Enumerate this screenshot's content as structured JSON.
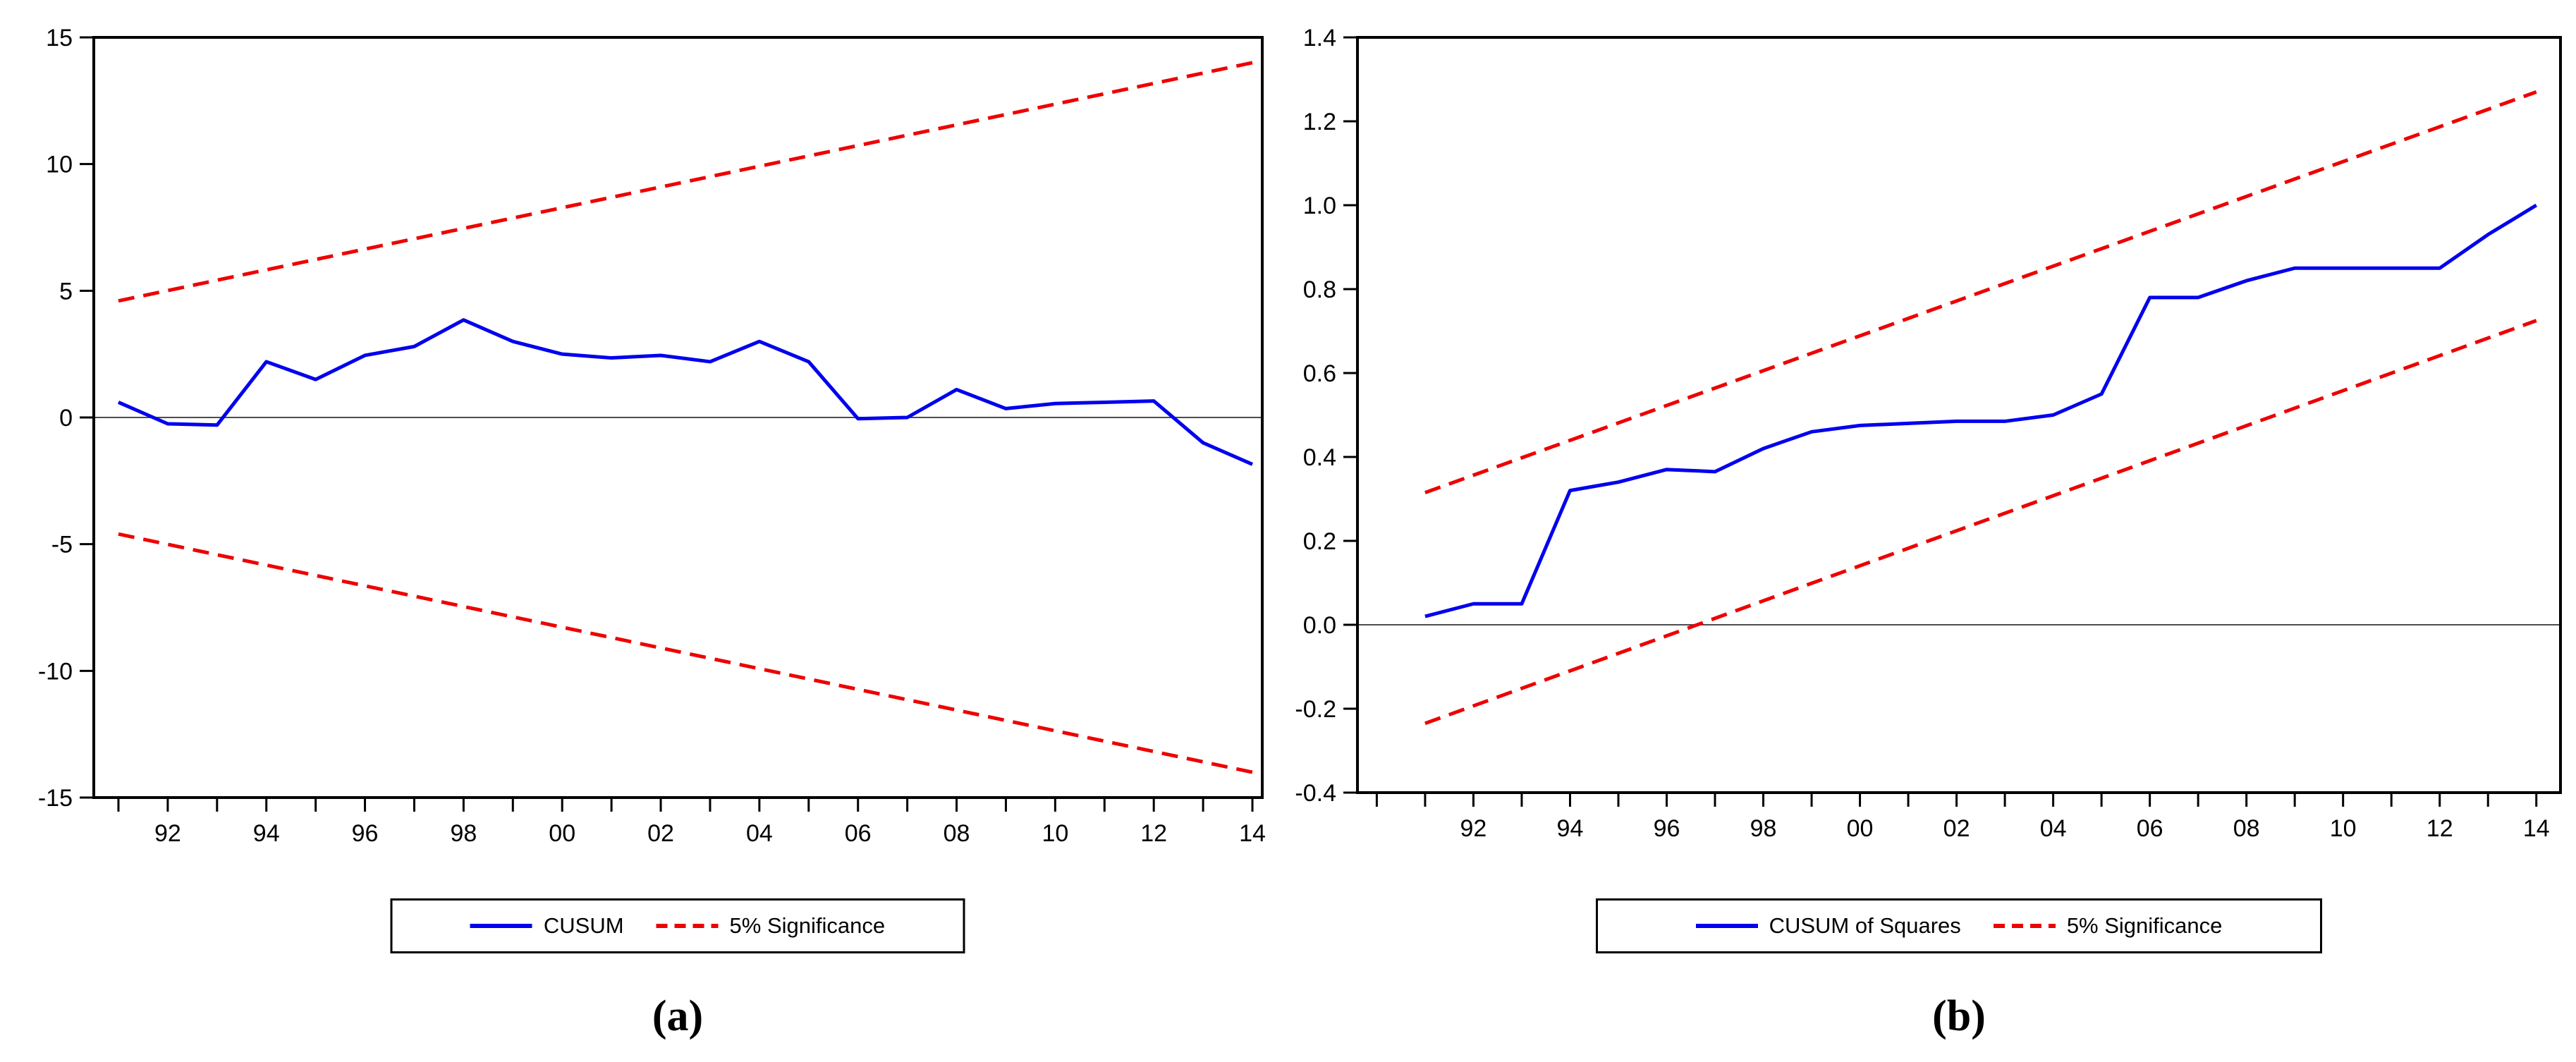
{
  "page": {
    "background_color": "#ffffff"
  },
  "colors": {
    "series_blue": "#0000ee",
    "significance_red": "#ee0000",
    "axis_black": "#000000",
    "zero_line_gray": "#4d4d4d",
    "text_black": "#000000"
  },
  "chart_data": [
    {
      "type": "line",
      "panel": "a",
      "caption": "(a)",
      "title": "",
      "xlabel": "",
      "ylabel": "",
      "xlim": [
        1990.5,
        2014.2
      ],
      "ylim": [
        -15,
        15
      ],
      "grid": false,
      "legend_position": "bottom-center",
      "zero_line": true,
      "x_tick_years": [
        1991,
        1992,
        1993,
        1994,
        1995,
        1996,
        1997,
        1998,
        1999,
        2000,
        2001,
        2002,
        2003,
        2004,
        2005,
        2006,
        2007,
        2008,
        2009,
        2010,
        2011,
        2012,
        2013,
        2014
      ],
      "x_label_years": [
        1992,
        1994,
        1996,
        1998,
        2000,
        2002,
        2004,
        2006,
        2008,
        2010,
        2012,
        2014
      ],
      "x_label_texts": [
        "92",
        "94",
        "96",
        "98",
        "00",
        "02",
        "04",
        "06",
        "08",
        "10",
        "12",
        "14"
      ],
      "y_ticks": [
        15,
        10,
        5,
        0,
        -5,
        -10,
        -15
      ],
      "y_tick_labels": [
        "15",
        "10",
        "5",
        "0",
        "-5",
        "-10",
        "-15"
      ],
      "legend": {
        "series": "CUSUM",
        "significance": "5% Significance"
      },
      "series": [
        {
          "name": "CUSUM",
          "style": "solid",
          "color_key": "series_blue",
          "x": [
            1991,
            1992,
            1993,
            1994,
            1995,
            1996,
            1997,
            1998,
            1999,
            2000,
            2001,
            2002,
            2003,
            2004,
            2005,
            2006,
            2007,
            2008,
            2009,
            2010,
            2011,
            2012,
            2013,
            2014
          ],
          "values": [
            0.6,
            -0.25,
            -0.3,
            2.2,
            1.5,
            2.45,
            2.8,
            3.85,
            3.0,
            2.5,
            2.35,
            2.45,
            2.2,
            3.0,
            2.2,
            -0.05,
            0.0,
            1.1,
            0.35,
            0.55,
            0.6,
            0.65,
            -1.0,
            -1.85
          ]
        },
        {
          "name": "5% Significance upper",
          "style": "dashed",
          "color_key": "significance_red",
          "x": [
            1991,
            2014
          ],
          "values": [
            4.6,
            14.0
          ]
        },
        {
          "name": "5% Significance lower",
          "style": "dashed",
          "color_key": "significance_red",
          "x": [
            1991,
            2014
          ],
          "values": [
            -4.6,
            -14.0
          ]
        }
      ]
    },
    {
      "type": "line",
      "panel": "b",
      "caption": "(b)",
      "title": "",
      "xlabel": "",
      "ylabel": "",
      "xlim": [
        1989.6,
        2014.5
      ],
      "ylim": [
        -0.4,
        1.4
      ],
      "grid": false,
      "legend_position": "bottom-center",
      "zero_line": true,
      "x_tick_years": [
        1990,
        1991,
        1992,
        1993,
        1994,
        1995,
        1996,
        1997,
        1998,
        1999,
        2000,
        2001,
        2002,
        2003,
        2004,
        2005,
        2006,
        2007,
        2008,
        2009,
        2010,
        2011,
        2012,
        2013,
        2014
      ],
      "x_label_years": [
        1992,
        1994,
        1996,
        1998,
        2000,
        2002,
        2004,
        2006,
        2008,
        2010,
        2012,
        2014
      ],
      "x_label_texts": [
        "92",
        "94",
        "96",
        "98",
        "00",
        "02",
        "04",
        "06",
        "08",
        "10",
        "12",
        "14"
      ],
      "y_ticks": [
        1.4,
        1.2,
        1.0,
        0.8,
        0.6,
        0.4,
        0.2,
        0.0,
        -0.2,
        -0.4
      ],
      "y_tick_labels": [
        "1.4",
        "1.2",
        "1.0",
        "0.8",
        "0.6",
        "0.4",
        "0.2",
        "0.0",
        "-0.2",
        "-0.4"
      ],
      "legend": {
        "series": "CUSUM of Squares",
        "significance": "5% Significance"
      },
      "series": [
        {
          "name": "CUSUM of Squares",
          "style": "solid",
          "color_key": "series_blue",
          "x": [
            1991,
            1992,
            1993,
            1994,
            1995,
            1996,
            1997,
            1998,
            1999,
            2000,
            2001,
            2002,
            2003,
            2004,
            2005,
            2006,
            2007,
            2008,
            2009,
            2010,
            2011,
            2012,
            2013,
            2014
          ],
          "values": [
            0.02,
            0.05,
            0.05,
            0.32,
            0.34,
            0.37,
            0.365,
            0.42,
            0.46,
            0.475,
            0.48,
            0.485,
            0.485,
            0.5,
            0.55,
            0.78,
            0.78,
            0.82,
            0.85,
            0.85,
            0.85,
            0.85,
            0.93,
            1.0
          ]
        },
        {
          "name": "5% Significance upper",
          "style": "dashed",
          "color_key": "significance_red",
          "x": [
            1991,
            2014
          ],
          "values": [
            0.315,
            1.27
          ]
        },
        {
          "name": "5% Significance lower",
          "style": "dashed",
          "color_key": "significance_red",
          "x": [
            1991,
            2014
          ],
          "values": [
            -0.235,
            0.725
          ]
        }
      ]
    }
  ]
}
